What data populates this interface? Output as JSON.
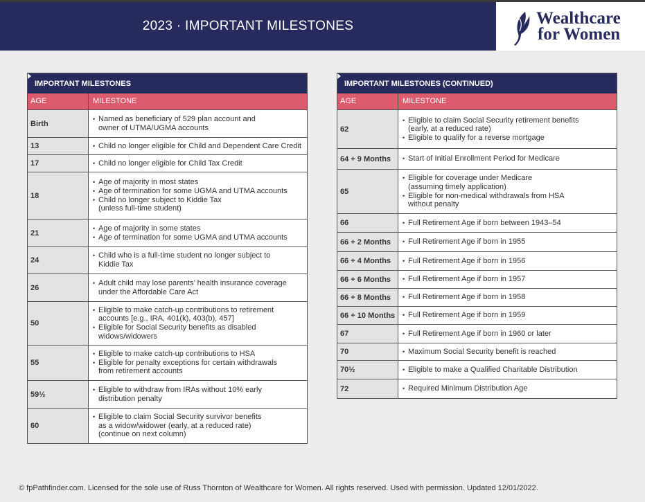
{
  "header": {
    "title": "2023 · IMPORTANT MILESTONES",
    "logo": [
      "Wealthcare",
      "for Women"
    ]
  },
  "tables": [
    {
      "title": "IMPORTANT MILESTONES",
      "columns": [
        "AGE",
        "MILESTONE"
      ],
      "rows": [
        {
          "age": "Birth",
          "milestones": [
            [
              "Named as beneficiary of 529 plan account and",
              "owner of UTMA/UGMA accounts"
            ]
          ]
        },
        {
          "age": "13",
          "milestones": [
            [
              "Child no longer eligible for Child and Dependent Care Credit"
            ]
          ]
        },
        {
          "age": "17",
          "milestones": [
            [
              "Child no longer eligible for Child Tax Credit"
            ]
          ]
        },
        {
          "age": "18",
          "milestones": [
            [
              "Age of majority in most states"
            ],
            [
              "Age of termination for some UGMA and UTMA accounts"
            ],
            [
              "Child no longer subject to Kiddie Tax",
              "(unless full-time student)"
            ]
          ]
        },
        {
          "age": "21",
          "milestones": [
            [
              "Age of majority in some states"
            ],
            [
              "Age of termination for some UGMA and UTMA accounts"
            ]
          ]
        },
        {
          "age": "24",
          "milestones": [
            [
              "Child who is a full-time student no longer subject to",
              "Kiddie Tax"
            ]
          ]
        },
        {
          "age": "26",
          "milestones": [
            [
              "Adult child may lose parents’ health insurance coverage",
              "under the Affordable Care Act"
            ]
          ]
        },
        {
          "age": "50",
          "milestones": [
            [
              "Eligible to make catch-up contributions to retirement",
              "accounts [e.g., IRA, 401(k), 403(b), 457]"
            ],
            [
              "Eligible for Social Security benefits as disabled",
              "widows/widowers"
            ]
          ]
        },
        {
          "age": "55",
          "milestones": [
            [
              "Eligible to make catch-up contributions to HSA"
            ],
            [
              "Eligible for penalty exceptions for certain withdrawals",
              "from retirement accounts"
            ]
          ]
        },
        {
          "age": "59½",
          "milestones": [
            [
              "Eligible to withdraw from IRAs without 10% early",
              "distribution penalty"
            ]
          ]
        },
        {
          "age": "60",
          "milestones": [
            [
              "Eligible to claim Social Security survivor benefits",
              "as a widow/widower (early, at a reduced rate)",
              "(continue on next column)"
            ]
          ]
        }
      ]
    },
    {
      "title": "IMPORTANT MILESTONES (CONTINUED)",
      "columns": [
        "AGE",
        "MILESTONE"
      ],
      "rows": [
        {
          "age": "62",
          "milestones": [
            [
              "Eligible to claim Social Security retirement benefits",
              "(early, at a reduced rate)"
            ],
            [
              "Eligible to qualify for a reverse mortgage"
            ]
          ]
        },
        {
          "age": "64 + 9 Months",
          "milestones": [
            [
              "Start of Initial Enrollment Period for Medicare"
            ]
          ]
        },
        {
          "age": "65",
          "milestones": [
            [
              "Eligible for coverage under Medicare",
              "(assuming timely application)"
            ],
            [
              "Eligible for non-medical withdrawals from HSA",
              "without penalty"
            ]
          ]
        },
        {
          "age": "66",
          "milestones": [
            [
              "Full Retirement Age if born between 1943–54"
            ]
          ]
        },
        {
          "age": "66 + 2 Months",
          "milestones": [
            [
              "Full Retirement Age if born in 1955"
            ]
          ]
        },
        {
          "age": "66 + 4 Months",
          "milestones": [
            [
              "Full Retirement Age if born in 1956"
            ]
          ]
        },
        {
          "age": "66 + 6 Months",
          "milestones": [
            [
              "Full Retirement Age if born in 1957"
            ]
          ]
        },
        {
          "age": "66 + 8 Months",
          "milestones": [
            [
              "Full Retirement Age if born in 1958"
            ]
          ]
        },
        {
          "age": "66 + 10 Months",
          "milestones": [
            [
              "Full Retirement Age if born in 1959"
            ]
          ]
        },
        {
          "age": "67",
          "milestones": [
            [
              "Full Retirement Age if born in 1960 or later"
            ]
          ]
        },
        {
          "age": "70",
          "milestones": [
            [
              "Maximum Social Security benefit is reached"
            ]
          ]
        },
        {
          "age": "70½",
          "milestones": [
            [
              "Eligible to make a Qualified Charitable Distribution"
            ]
          ]
        },
        {
          "age": "72",
          "milestones": [
            [
              "Required Minimum Distribution Age"
            ]
          ]
        }
      ]
    }
  ],
  "footer": "© fpPathfinder.com. Licensed for the sole use of Russ Thornton of Wealthcare for Women. All rights reserved. Used with permission. Updated 12/01/2022."
}
